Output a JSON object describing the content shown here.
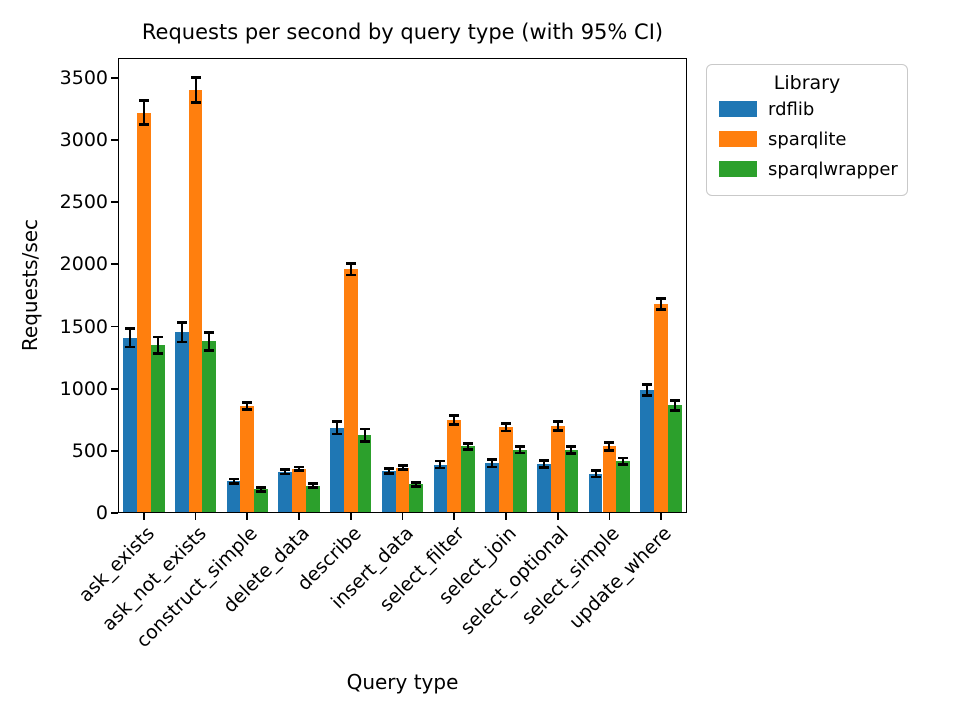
{
  "figure": {
    "title": "Requests per second by query type (with 95% CI)",
    "xlabel": "Query type",
    "ylabel": "Requests/sec"
  },
  "legend": {
    "title": "Library",
    "entries": [
      {
        "label": "rdflib",
        "color": "#1f77b4"
      },
      {
        "label": "sparqlite",
        "color": "#ff7f0e"
      },
      {
        "label": "sparqlwrapper",
        "color": "#2ca02c"
      }
    ]
  },
  "chart_data": {
    "type": "bar",
    "title": "Requests per second by query type (with 95% CI)",
    "xlabel": "Query type",
    "ylabel": "Requests/sec",
    "categories": [
      "ask_exists",
      "ask_not_exists",
      "construct_simple",
      "delete_data",
      "describe",
      "insert_data",
      "select_filter",
      "select_join",
      "select_optional",
      "select_simple",
      "update_where"
    ],
    "series": [
      {
        "name": "rdflib",
        "color": "#1f77b4",
        "values": [
          1410,
          1455,
          255,
          333,
          685,
          335,
          390,
          400,
          395,
          315,
          990
        ],
        "errors": [
          75,
          80,
          18,
          20,
          50,
          20,
          28,
          30,
          30,
          25,
          45
        ]
      },
      {
        "name": "sparqlite",
        "color": "#ff7f0e",
        "values": [
          3220,
          3400,
          860,
          355,
          1960,
          365,
          750,
          690,
          700,
          535,
          1680
        ],
        "errors": [
          95,
          100,
          30,
          15,
          45,
          15,
          35,
          30,
          35,
          30,
          45
        ]
      },
      {
        "name": "sparqlwrapper",
        "color": "#2ca02c",
        "values": [
          1350,
          1380,
          190,
          220,
          625,
          230,
          535,
          510,
          505,
          415,
          865
        ],
        "errors": [
          65,
          70,
          15,
          15,
          50,
          15,
          25,
          28,
          28,
          28,
          40
        ]
      }
    ],
    "yticks": [
      0,
      500,
      1000,
      1500,
      2000,
      2500,
      3000,
      3500
    ],
    "ylim": [
      0,
      3660
    ],
    "error_bars": "95% CI",
    "error_color": "#000000",
    "grid": false,
    "legend_title": "Library",
    "legend_position": "upper-right-outside",
    "xtick_rotation": 45
  }
}
